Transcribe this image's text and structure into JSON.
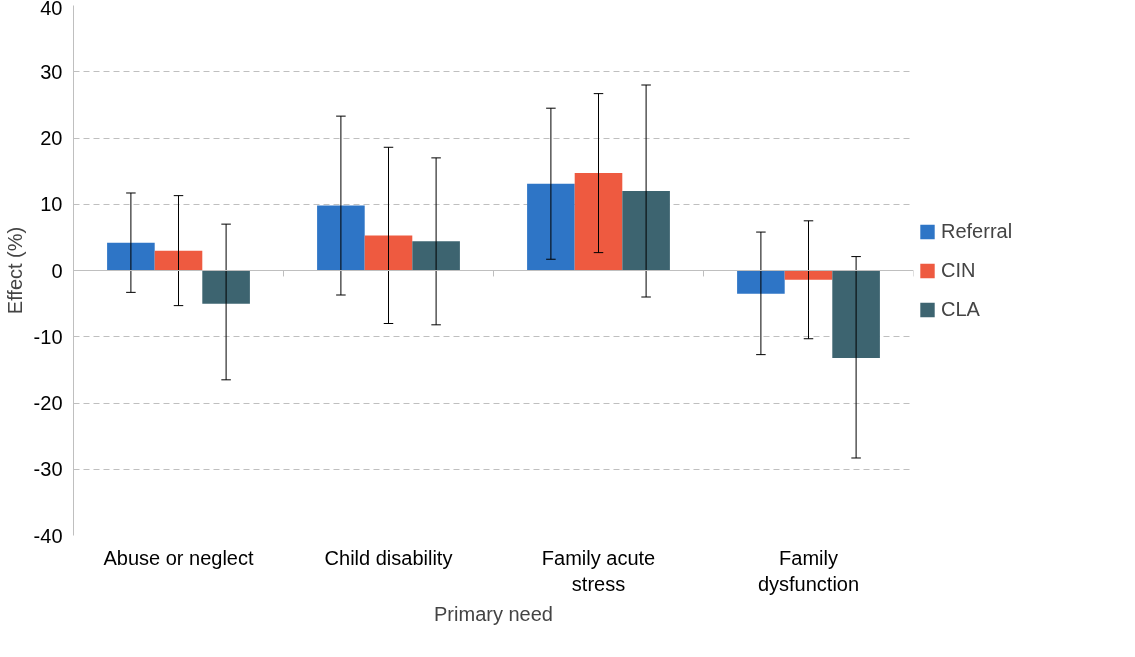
{
  "chart_data": {
    "type": "bar",
    "xlabel": "Primary need",
    "ylabel": "Effect (%)",
    "categories": [
      "Abuse or neglect",
      "Child disability",
      "Family acute stress",
      "Family dysfunction"
    ],
    "series": [
      {
        "name": "Referral",
        "color": "#2e75c6",
        "values": [
          4.2,
          9.8,
          13.1,
          -3.5
        ],
        "errors": [
          [
            -3.3,
            11.7
          ],
          [
            -3.7,
            23.3
          ],
          [
            1.7,
            24.5
          ],
          [
            -12.7,
            5.8
          ]
        ]
      },
      {
        "name": "CIN",
        "color": "#ee5a40",
        "values": [
          3.0,
          5.3,
          14.7,
          -1.4
        ],
        "errors": [
          [
            -5.3,
            11.3
          ],
          [
            -8.0,
            18.6
          ],
          [
            2.7,
            26.7
          ],
          [
            -10.3,
            7.5
          ]
        ]
      },
      {
        "name": "CLA",
        "color": "#3d6470",
        "values": [
          -5.0,
          4.4,
          12.0,
          -13.2
        ],
        "errors": [
          [
            -16.5,
            7.0
          ],
          [
            -8.2,
            17.0
          ],
          [
            -4.0,
            28.0
          ],
          [
            -28.3,
            2.1
          ]
        ]
      }
    ],
    "ylim": [
      -40,
      40
    ],
    "yticks": [
      -40,
      -30,
      -20,
      -10,
      0,
      10,
      20,
      30,
      40
    ],
    "grid": "y",
    "legend": "right"
  }
}
